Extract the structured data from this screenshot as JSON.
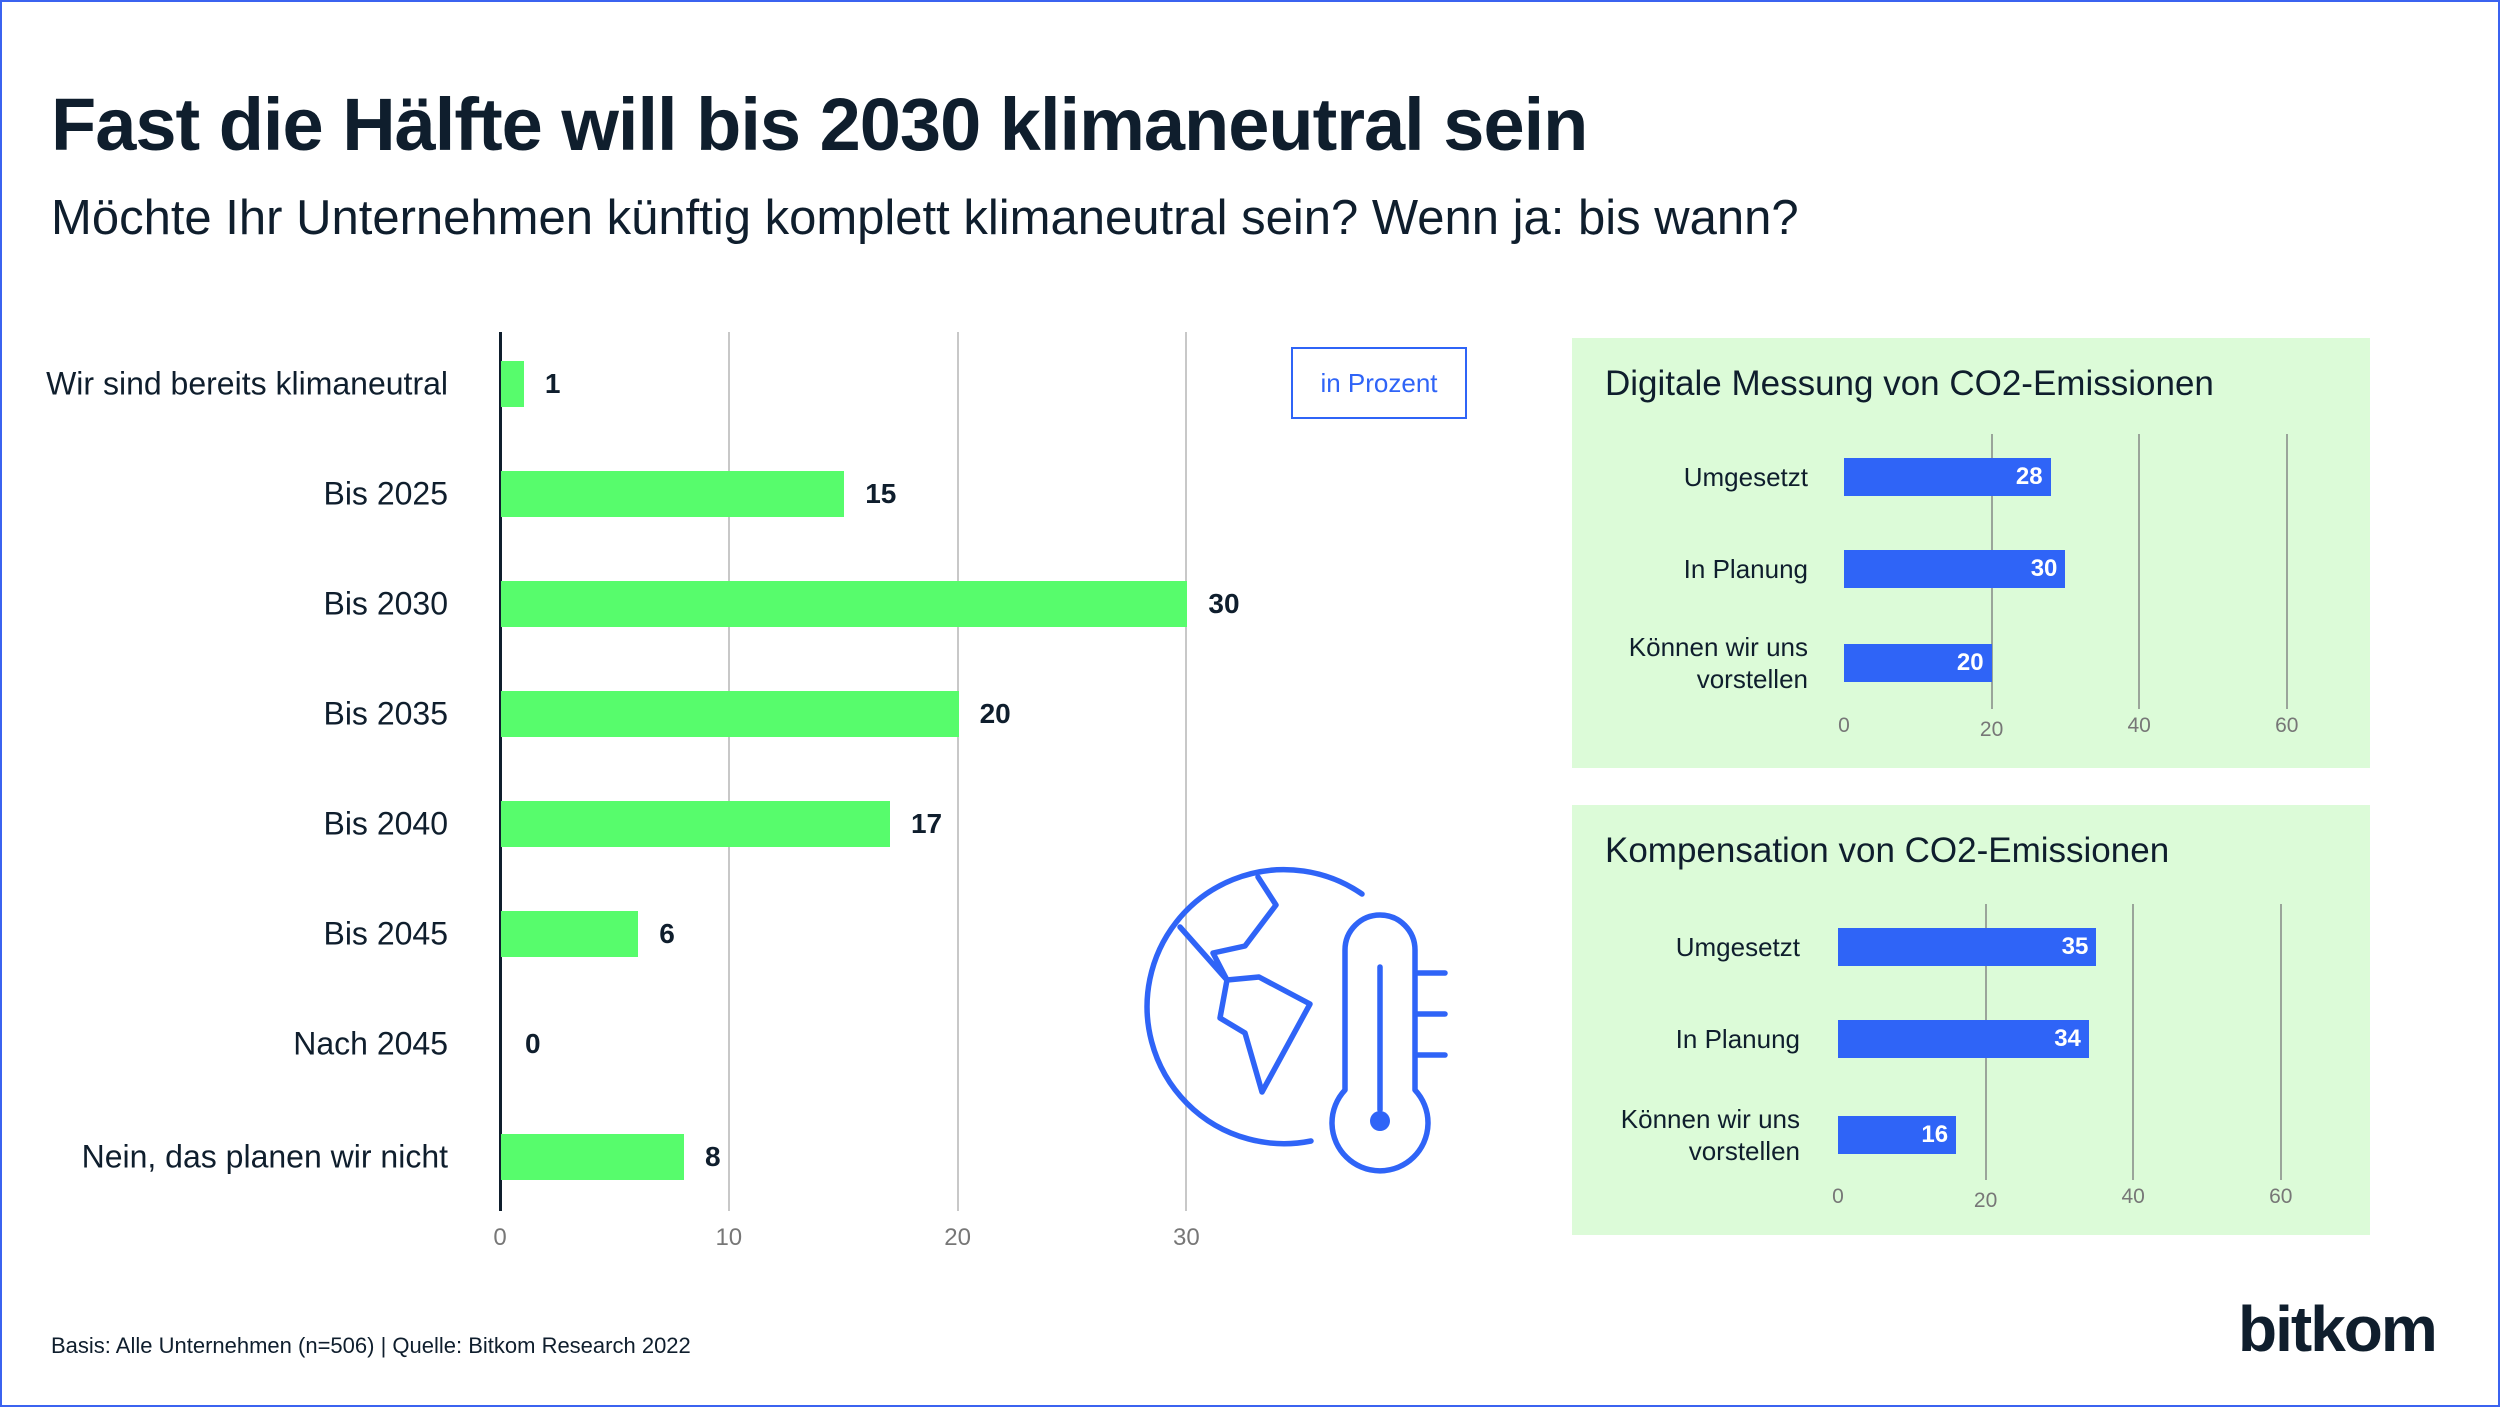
{
  "title": "Fast die Hälfte will bis 2030 klimaneutral sein",
  "subtitle": "Möchte Ihr Unternehmen künftig komplett klimaneutral sein? Wenn ja: bis wann?",
  "unit_label": "in Prozent",
  "footer": "Basis: Alle Unternehmen (n=506) | Quelle: Bitkom Research 2022",
  "logo": "bitkom",
  "colors": {
    "main_bar": "#57fc6c",
    "panel_bar": "#2f64f7",
    "panel_bg": "#dcfbd8",
    "icon": "#2f64f7"
  },
  "icon": "globe-thermometer-icon",
  "chart_data": [
    {
      "type": "bar",
      "orientation": "horizontal",
      "categories": [
        "Wir sind bereits klimaneutral",
        "Bis 2025",
        "Bis 2030",
        "Bis 2035",
        "Bis 2040",
        "Bis 2045",
        "Nach 2045",
        "Nein, das planen wir nicht"
      ],
      "values": [
        1,
        15,
        30,
        20,
        17,
        6,
        0,
        8
      ],
      "xlim": [
        0,
        30
      ],
      "xticks": [
        "0",
        "10",
        "20",
        "30"
      ],
      "grid": true
    },
    {
      "type": "bar",
      "orientation": "horizontal",
      "title": "Digitale Messung von CO2-Emissionen",
      "categories": [
        "Umgesetzt",
        "In Planung",
        "Können wir uns vorstellen"
      ],
      "values": [
        28,
        30,
        20
      ],
      "xlim": [
        0,
        60
      ],
      "xticks": [
        "0",
        "20",
        "40",
        "60"
      ],
      "grid": true
    },
    {
      "type": "bar",
      "orientation": "horizontal",
      "title": "Kompensation von CO2-Emissionen",
      "categories": [
        "Umgesetzt",
        "In Planung",
        "Können wir uns vorstellen"
      ],
      "values": [
        35,
        34,
        16
      ],
      "xlim": [
        0,
        60
      ],
      "xticks": [
        "0",
        "20",
        "40",
        "60"
      ],
      "grid": true
    }
  ]
}
